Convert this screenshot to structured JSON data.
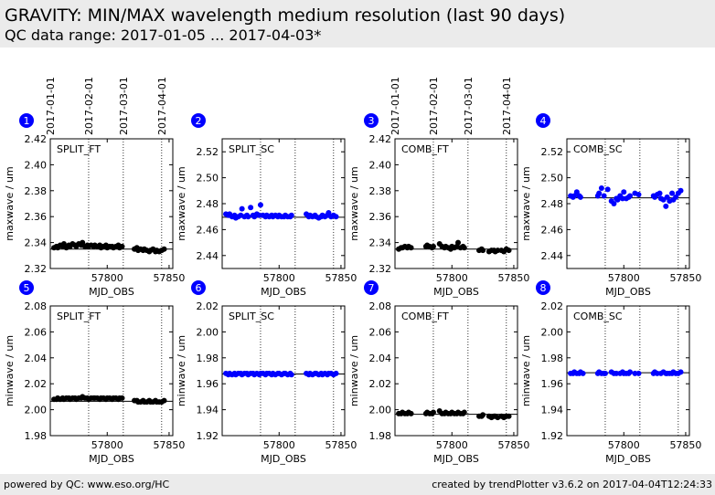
{
  "header": {
    "title": "GRAVITY: MIN/MAX wavelength medium resolution (last 90 days)",
    "subtitle": "QC data range: 2017-01-05 ... 2017-04-03*"
  },
  "footer": {
    "left": "powered by QC: www.eso.org/HC",
    "right": "created by trendPlotter v3.6.2 on 2017-04-04T12:24:33"
  },
  "date_ticks": [
    "2017-01-01",
    "2017-02-01",
    "2017-03-01",
    "2017-04-01"
  ],
  "colors": {
    "ft": "#000000",
    "sc": "#0000ff",
    "badge": "#0000ff"
  },
  "chart_data": [
    {
      "num": "1",
      "type": "scatter",
      "label": "SPLIT_FT",
      "xlabel": "MJD_OBS",
      "ylabel": "maxwave / um",
      "xlim": [
        57754,
        57853
      ],
      "ylim": [
        2.32,
        2.42
      ],
      "yticks": [
        "2.32",
        "2.34",
        "2.36",
        "2.38",
        "2.40",
        "2.42"
      ],
      "xticks": [
        "57800",
        "57850"
      ],
      "ref": 2.335,
      "color": "#000000",
      "x": [
        57757,
        57759,
        57760,
        57762,
        57764,
        57765,
        57767,
        57769,
        57770,
        57772,
        57774,
        57775,
        57777,
        57779,
        57780,
        57782,
        57784,
        57785,
        57787,
        57789,
        57790,
        57792,
        57794,
        57795,
        57797,
        57799,
        57800,
        57802,
        57804,
        57805,
        57807,
        57809,
        57810,
        57812,
        57822,
        57824,
        57825,
        57827,
        57829,
        57830,
        57832,
        57834,
        57835,
        57837,
        57839,
        57840,
        57842,
        57844,
        57846
      ],
      "y": [
        2.336,
        2.337,
        2.336,
        2.338,
        2.337,
        2.339,
        2.336,
        2.338,
        2.337,
        2.339,
        2.338,
        2.337,
        2.339,
        2.338,
        2.34,
        2.337,
        2.338,
        2.337,
        2.338,
        2.337,
        2.338,
        2.337,
        2.338,
        2.336,
        2.337,
        2.338,
        2.336,
        2.337,
        2.337,
        2.336,
        2.337,
        2.338,
        2.336,
        2.337,
        2.335,
        2.336,
        2.334,
        2.335,
        2.334,
        2.335,
        2.334,
        2.333,
        2.334,
        2.335,
        2.333,
        2.334,
        2.333,
        2.334,
        2.335
      ]
    },
    {
      "num": "2",
      "type": "scatter",
      "label": "SPLIT_SC",
      "xlabel": "MJD_OBS",
      "ylabel": "maxwave / um",
      "xlim": [
        57754,
        57853
      ],
      "ylim": [
        2.43,
        2.53
      ],
      "yticks": [
        "2.44",
        "2.46",
        "2.48",
        "2.50",
        "2.52"
      ],
      "xticks": [
        "57800",
        "57850"
      ],
      "ref": 2.4695,
      "color": "#0000ff",
      "x": [
        57757,
        57759,
        57760,
        57762,
        57764,
        57765,
        57767,
        57769,
        57770,
        57772,
        57774,
        57775,
        57777,
        57779,
        57780,
        57782,
        57784,
        57785,
        57787,
        57789,
        57790,
        57792,
        57794,
        57795,
        57797,
        57799,
        57800,
        57802,
        57804,
        57805,
        57807,
        57809,
        57810,
        57822,
        57824,
        57825,
        57827,
        57829,
        57830,
        57832,
        57834,
        57835,
        57837,
        57839,
        57840,
        57842,
        57844,
        57846
      ],
      "y": [
        2.472,
        2.471,
        2.472,
        2.47,
        2.471,
        2.469,
        2.47,
        2.471,
        2.476,
        2.47,
        2.471,
        2.47,
        2.477,
        2.471,
        2.47,
        2.472,
        2.471,
        2.479,
        2.471,
        2.47,
        2.471,
        2.47,
        2.471,
        2.47,
        2.471,
        2.47,
        2.471,
        2.47,
        2.47,
        2.471,
        2.47,
        2.47,
        2.471,
        2.472,
        2.47,
        2.471,
        2.47,
        2.471,
        2.47,
        2.469,
        2.47,
        2.471,
        2.47,
        2.471,
        2.473,
        2.47,
        2.471,
        2.47
      ]
    },
    {
      "num": "3",
      "type": "scatter",
      "label": "COMB_FT",
      "xlabel": "MJD_OBS",
      "ylabel": "maxwave / um",
      "xlim": [
        57754,
        57853
      ],
      "ylim": [
        2.32,
        2.42
      ],
      "yticks": [
        "2.32",
        "2.34",
        "2.36",
        "2.38",
        "2.40",
        "2.42"
      ],
      "xticks": [
        "57800",
        "57850"
      ],
      "ref": 2.335,
      "color": "#000000",
      "x": [
        57757,
        57759,
        57760,
        57762,
        57764,
        57765,
        57767,
        57779,
        57780,
        57782,
        57784,
        57785,
        57790,
        57792,
        57794,
        57795,
        57797,
        57799,
        57800,
        57802,
        57804,
        57805,
        57807,
        57809,
        57810,
        57822,
        57824,
        57825,
        57830,
        57832,
        57834,
        57835,
        57837,
        57840,
        57842,
        57844,
        57846
      ],
      "y": [
        2.335,
        2.336,
        2.336,
        2.337,
        2.336,
        2.337,
        2.336,
        2.337,
        2.338,
        2.337,
        2.336,
        2.337,
        2.339,
        2.337,
        2.336,
        2.337,
        2.336,
        2.335,
        2.337,
        2.336,
        2.337,
        2.34,
        2.336,
        2.337,
        2.336,
        2.334,
        2.335,
        2.334,
        2.333,
        2.334,
        2.334,
        2.333,
        2.334,
        2.334,
        2.333,
        2.335,
        2.334
      ]
    },
    {
      "num": "4",
      "type": "scatter",
      "label": "COMB_SC",
      "xlabel": "MJD_OBS",
      "ylabel": "maxwave / um",
      "xlim": [
        57754,
        57853
      ],
      "ylim": [
        2.43,
        2.53
      ],
      "yticks": [
        "2.44",
        "2.46",
        "2.48",
        "2.50",
        "2.52"
      ],
      "xticks": [
        "57800",
        "57850"
      ],
      "ref": 2.4845,
      "color": "#0000ff",
      "x": [
        57757,
        57759,
        57760,
        57762,
        57764,
        57765,
        57779,
        57780,
        57782,
        57784,
        57787,
        57790,
        57792,
        57794,
        57795,
        57797,
        57799,
        57800,
        57802,
        57804,
        57805,
        57809,
        57812,
        57824,
        57825,
        57827,
        57829,
        57830,
        57832,
        57834,
        57835,
        57837,
        57839,
        57840,
        57842,
        57844,
        57846
      ],
      "y": [
        2.486,
        2.485,
        2.486,
        2.489,
        2.486,
        2.485,
        2.486,
        2.488,
        2.492,
        2.486,
        2.491,
        2.482,
        2.48,
        2.484,
        2.483,
        2.486,
        2.484,
        2.489,
        2.484,
        2.485,
        2.486,
        2.488,
        2.487,
        2.486,
        2.485,
        2.487,
        2.488,
        2.484,
        2.483,
        2.478,
        2.485,
        2.482,
        2.488,
        2.483,
        2.485,
        2.488,
        2.49
      ]
    },
    {
      "num": "5",
      "type": "scatter",
      "label": "SPLIT_FT",
      "xlabel": "MJD_OBS",
      "ylabel": "minwave / um",
      "xlim": [
        57754,
        57853
      ],
      "ylim": [
        1.98,
        2.08
      ],
      "yticks": [
        "1.98",
        "2.00",
        "2.02",
        "2.04",
        "2.06",
        "2.08"
      ],
      "xticks": [
        "57800",
        "57850"
      ],
      "ref": 2.0065,
      "color": "#000000",
      "x": [
        57757,
        57759,
        57760,
        57762,
        57764,
        57765,
        57767,
        57769,
        57770,
        57772,
        57774,
        57775,
        57777,
        57779,
        57780,
        57782,
        57784,
        57785,
        57787,
        57789,
        57790,
        57792,
        57794,
        57795,
        57797,
        57799,
        57800,
        57802,
        57804,
        57805,
        57807,
        57809,
        57810,
        57812,
        57822,
        57824,
        57825,
        57827,
        57829,
        57830,
        57832,
        57834,
        57835,
        57837,
        57839,
        57840,
        57842,
        57844,
        57846
      ],
      "y": [
        2.008,
        2.008,
        2.009,
        2.008,
        2.009,
        2.008,
        2.009,
        2.009,
        2.008,
        2.009,
        2.009,
        2.008,
        2.009,
        2.009,
        2.01,
        2.009,
        2.009,
        2.008,
        2.009,
        2.009,
        2.009,
        2.009,
        2.008,
        2.009,
        2.009,
        2.008,
        2.009,
        2.009,
        2.008,
        2.009,
        2.009,
        2.008,
        2.009,
        2.009,
        2.007,
        2.007,
        2.006,
        2.006,
        2.007,
        2.006,
        2.006,
        2.007,
        2.006,
        2.006,
        2.007,
        2.006,
        2.006,
        2.006,
        2.007
      ]
    },
    {
      "num": "6",
      "type": "scatter",
      "label": "SPLIT_SC",
      "xlabel": "MJD_OBS",
      "ylabel": "minwave / um",
      "xlim": [
        57754,
        57853
      ],
      "ylim": [
        1.92,
        2.02
      ],
      "yticks": [
        "1.92",
        "1.94",
        "1.96",
        "1.98",
        "2.00",
        "2.02"
      ],
      "xticks": [
        "57800",
        "57850"
      ],
      "ref": 1.9675,
      "color": "#0000ff",
      "x": [
        57757,
        57759,
        57760,
        57762,
        57764,
        57765,
        57767,
        57769,
        57770,
        57772,
        57774,
        57775,
        57777,
        57779,
        57780,
        57782,
        57784,
        57785,
        57787,
        57789,
        57790,
        57792,
        57794,
        57795,
        57797,
        57799,
        57800,
        57802,
        57804,
        57805,
        57807,
        57809,
        57810,
        57822,
        57824,
        57825,
        57827,
        57829,
        57830,
        57832,
        57834,
        57835,
        57837,
        57839,
        57840,
        57842,
        57844,
        57846
      ],
      "y": [
        1.968,
        1.967,
        1.968,
        1.967,
        1.968,
        1.967,
        1.968,
        1.968,
        1.967,
        1.968,
        1.968,
        1.967,
        1.968,
        1.968,
        1.967,
        1.968,
        1.967,
        1.968,
        1.968,
        1.967,
        1.968,
        1.968,
        1.967,
        1.968,
        1.967,
        1.968,
        1.968,
        1.967,
        1.968,
        1.968,
        1.967,
        1.968,
        1.967,
        1.968,
        1.967,
        1.968,
        1.967,
        1.968,
        1.968,
        1.967,
        1.968,
        1.967,
        1.968,
        1.967,
        1.968,
        1.968,
        1.967,
        1.968
      ]
    },
    {
      "num": "7",
      "type": "scatter",
      "label": "COMB_FT",
      "xlabel": "MJD_OBS",
      "ylabel": "minwave / um",
      "xlim": [
        57754,
        57853
      ],
      "ylim": [
        1.98,
        2.08
      ],
      "yticks": [
        "1.98",
        "2.00",
        "2.02",
        "2.04",
        "2.06",
        "2.08"
      ],
      "xticks": [
        "57800",
        "57850"
      ],
      "ref": 1.9965,
      "color": "#000000",
      "x": [
        57757,
        57759,
        57760,
        57762,
        57764,
        57765,
        57767,
        57779,
        57780,
        57782,
        57784,
        57785,
        57790,
        57792,
        57794,
        57795,
        57797,
        57799,
        57800,
        57802,
        57804,
        57805,
        57807,
        57809,
        57810,
        57822,
        57824,
        57825,
        57830,
        57832,
        57834,
        57835,
        57837,
        57840,
        57842,
        57844,
        57846
      ],
      "y": [
        1.997,
        1.997,
        1.998,
        1.997,
        1.997,
        1.998,
        1.997,
        1.997,
        1.998,
        1.997,
        1.997,
        1.998,
        1.999,
        1.997,
        1.997,
        1.998,
        1.997,
        1.997,
        1.998,
        1.997,
        1.997,
        1.998,
        1.997,
        1.997,
        1.998,
        1.995,
        1.995,
        1.996,
        1.995,
        1.994,
        1.995,
        1.995,
        1.994,
        1.995,
        1.994,
        1.995,
        1.995
      ]
    },
    {
      "num": "8",
      "type": "scatter",
      "label": "COMB_SC",
      "xlabel": "MJD_OBS",
      "ylabel": "minwave / um",
      "xlim": [
        57754,
        57853
      ],
      "ylim": [
        1.92,
        2.02
      ],
      "yticks": [
        "1.92",
        "1.94",
        "1.96",
        "1.98",
        "2.00",
        "2.02"
      ],
      "xticks": [
        "57800",
        "57850"
      ],
      "ref": 1.9685,
      "color": "#0000ff",
      "x": [
        57757,
        57759,
        57760,
        57762,
        57764,
        57765,
        57767,
        57779,
        57780,
        57782,
        57784,
        57785,
        57790,
        57792,
        57794,
        57797,
        57799,
        57800,
        57802,
        57804,
        57805,
        57809,
        57812,
        57824,
        57825,
        57827,
        57830,
        57832,
        57834,
        57835,
        57837,
        57839,
        57840,
        57842,
        57844,
        57846
      ],
      "y": [
        1.968,
        1.968,
        1.969,
        1.968,
        1.968,
        1.969,
        1.968,
        1.968,
        1.969,
        1.968,
        1.968,
        1.968,
        1.969,
        1.968,
        1.968,
        1.968,
        1.969,
        1.968,
        1.968,
        1.968,
        1.969,
        1.968,
        1.968,
        1.968,
        1.969,
        1.968,
        1.968,
        1.969,
        1.968,
        1.968,
        1.968,
        1.968,
        1.969,
        1.968,
        1.968,
        1.969
      ]
    }
  ]
}
